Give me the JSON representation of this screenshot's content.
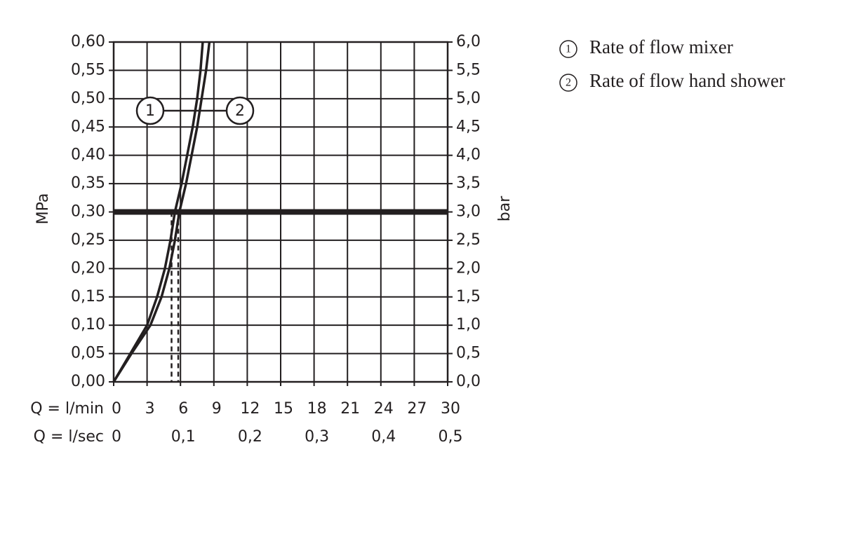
{
  "chart_data": {
    "type": "line",
    "x_label": "Q = l/min",
    "x2_label": "Q = l/sec",
    "y_label": "MPa",
    "y2_label": "bar",
    "xlim": [
      0,
      30
    ],
    "xticks": [
      0,
      3,
      6,
      9,
      12,
      15,
      18,
      21,
      24,
      27,
      30
    ],
    "x2lim": [
      0,
      0.5
    ],
    "x2ticks": [
      {
        "value": 0,
        "label": "0"
      },
      {
        "value": 0.1,
        "label": "0,1"
      },
      {
        "value": 0.2,
        "label": "0,2"
      },
      {
        "value": 0.3,
        "label": "0,3"
      },
      {
        "value": 0.4,
        "label": "0,4"
      },
      {
        "value": 0.5,
        "label": "0,5"
      }
    ],
    "ylim": [
      0,
      0.6
    ],
    "yticks": [
      {
        "value": 0,
        "label": "0,00"
      },
      {
        "value": 0.05,
        "label": "0,05"
      },
      {
        "value": 0.1,
        "label": "0,10"
      },
      {
        "value": 0.15,
        "label": "0,15"
      },
      {
        "value": 0.2,
        "label": "0,20"
      },
      {
        "value": 0.25,
        "label": "0,25"
      },
      {
        "value": 0.3,
        "label": "0,30"
      },
      {
        "value": 0.35,
        "label": "0,35"
      },
      {
        "value": 0.4,
        "label": "0,40"
      },
      {
        "value": 0.45,
        "label": "0,45"
      },
      {
        "value": 0.5,
        "label": "0,50"
      },
      {
        "value": 0.55,
        "label": "0,55"
      },
      {
        "value": 0.6,
        "label": "0,60"
      }
    ],
    "y2lim": [
      0,
      6
    ],
    "y2ticks": [
      {
        "value": 0,
        "label": "0,0"
      },
      {
        "value": 0.5,
        "label": "0,5"
      },
      {
        "value": 1,
        "label": "1,0"
      },
      {
        "value": 1.5,
        "label": "1,5"
      },
      {
        "value": 2,
        "label": "2,0"
      },
      {
        "value": 2.5,
        "label": "2,5"
      },
      {
        "value": 3,
        "label": "3,0"
      },
      {
        "value": 3.5,
        "label": "3,5"
      },
      {
        "value": 4,
        "label": "4,0"
      },
      {
        "value": 4.5,
        "label": "4,5"
      },
      {
        "value": 5,
        "label": "5,0"
      },
      {
        "value": 5.5,
        "label": "5,5"
      },
      {
        "value": 6,
        "label": "6,0"
      }
    ],
    "grid": true,
    "reference_line": 0.3,
    "dashed_lines": [
      5.2,
      5.8
    ],
    "series": [
      {
        "name": "Rate of flow mixer",
        "label": "1",
        "color": "#231f20",
        "x": [
          0,
          1.5,
          3.0,
          3.9,
          4.6,
          5.1,
          5.5,
          6.1,
          6.6,
          7.1,
          7.5,
          7.8,
          8.0
        ],
        "values": [
          0,
          0.05,
          0.1,
          0.15,
          0.2,
          0.25,
          0.3,
          0.35,
          0.4,
          0.45,
          0.5,
          0.55,
          0.6
        ]
      },
      {
        "name": "Rate of flow hand shower",
        "label": "2",
        "color": "#231f20",
        "x": [
          0,
          1.6,
          3.3,
          4.3,
          5.0,
          5.5,
          5.9,
          6.5,
          7.0,
          7.5,
          7.9,
          8.3,
          8.6
        ],
        "values": [
          0,
          0.05,
          0.1,
          0.15,
          0.2,
          0.25,
          0.3,
          0.35,
          0.4,
          0.45,
          0.5,
          0.55,
          0.6
        ]
      }
    ]
  }
}
